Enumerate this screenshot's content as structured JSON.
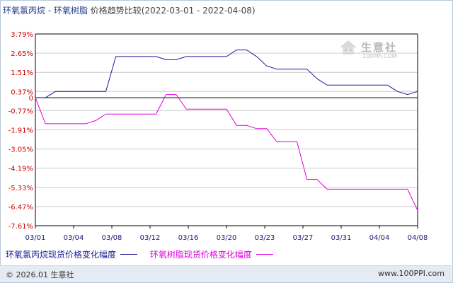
{
  "title": {
    "main": "环氧氯丙烷 - 环氧树脂",
    "sub": "价格趋势比较(2022-03-01 - 2022-04-08)"
  },
  "watermark": {
    "text": "生意社",
    "url": "100PPI.COM"
  },
  "footer": {
    "left": "© 2026.01 生意社",
    "right": "www.100PPI.com"
  },
  "colors": {
    "series_a": "#1a1a9a",
    "series_b": "#e000e0",
    "axis": "#000000",
    "grid": "#cccccc"
  },
  "chart_data": {
    "type": "line",
    "xlabel": "",
    "ylabel": "",
    "ylim": [
      -7.61,
      3.79
    ],
    "yticks": [
      "3.79%",
      "2.65%",
      "1.51%",
      "0.37%",
      "0",
      "-0.77%",
      "-1.91%",
      "-3.05%",
      "-4.19%",
      "-5.33%",
      "-6.47%",
      "-7.61%"
    ],
    "ytick_values": [
      3.79,
      2.65,
      1.51,
      0.37,
      0,
      -0.77,
      -1.91,
      -3.05,
      -4.19,
      -5.33,
      -6.47,
      -7.61
    ],
    "xticks": [
      "03/01",
      "03/04",
      "03/08",
      "03/12",
      "03/16",
      "03/20",
      "03/23",
      "03/27",
      "03/31",
      "04/04",
      "04/08"
    ],
    "x_day_range": [
      0,
      38
    ],
    "grid": "horizontal",
    "legend_position": "bottom",
    "series": [
      {
        "name": "环氧氯丙烷现货价格变化幅度",
        "color": "#1a1a9a",
        "points": [
          [
            0,
            0
          ],
          [
            1,
            0
          ],
          [
            2,
            0.37
          ],
          [
            3,
            0.37
          ],
          [
            4,
            0.37
          ],
          [
            5,
            0.37
          ],
          [
            6,
            0.37
          ],
          [
            7,
            0.37
          ],
          [
            8,
            2.45
          ],
          [
            9,
            2.45
          ],
          [
            10,
            2.45
          ],
          [
            11,
            2.45
          ],
          [
            12,
            2.45
          ],
          [
            13,
            2.26
          ],
          [
            14,
            2.26
          ],
          [
            15,
            2.45
          ],
          [
            16,
            2.45
          ],
          [
            17,
            2.45
          ],
          [
            18,
            2.45
          ],
          [
            19,
            2.45
          ],
          [
            20,
            2.84
          ],
          [
            21,
            2.84
          ],
          [
            22,
            2.45
          ],
          [
            23,
            1.89
          ],
          [
            24,
            1.7
          ],
          [
            25,
            1.7
          ],
          [
            26,
            1.7
          ],
          [
            27,
            1.7
          ],
          [
            28,
            1.13
          ],
          [
            29,
            0.75
          ],
          [
            30,
            0.75
          ],
          [
            31,
            0.75
          ],
          [
            32,
            0.75
          ],
          [
            33,
            0.75
          ],
          [
            34,
            0.75
          ],
          [
            35,
            0.75
          ],
          [
            36,
            0.37
          ],
          [
            37,
            0.19
          ],
          [
            38,
            0.37
          ]
        ]
      },
      {
        "name": "环氧树脂现货价格变化幅度",
        "color": "#e000e0",
        "points": [
          [
            0,
            0
          ],
          [
            1,
            -1.55
          ],
          [
            2,
            -1.55
          ],
          [
            3,
            -1.55
          ],
          [
            4,
            -1.55
          ],
          [
            5,
            -1.55
          ],
          [
            6,
            -1.36
          ],
          [
            7,
            -0.97
          ],
          [
            8,
            -0.97
          ],
          [
            9,
            -0.97
          ],
          [
            10,
            -0.97
          ],
          [
            11,
            -0.97
          ],
          [
            12,
            -0.97
          ],
          [
            13,
            0.19
          ],
          [
            14,
            0.19
          ],
          [
            15,
            -0.68
          ],
          [
            16,
            -0.68
          ],
          [
            17,
            -0.68
          ],
          [
            18,
            -0.68
          ],
          [
            19,
            -0.68
          ],
          [
            20,
            -1.65
          ],
          [
            21,
            -1.65
          ],
          [
            22,
            -1.84
          ],
          [
            23,
            -1.84
          ],
          [
            24,
            -2.62
          ],
          [
            25,
            -2.62
          ],
          [
            26,
            -2.62
          ],
          [
            27,
            -4.86
          ],
          [
            28,
            -4.86
          ],
          [
            29,
            -5.44
          ],
          [
            30,
            -5.44
          ],
          [
            31,
            -5.44
          ],
          [
            32,
            -5.44
          ],
          [
            33,
            -5.44
          ],
          [
            34,
            -5.44
          ],
          [
            35,
            -5.44
          ],
          [
            36,
            -5.44
          ],
          [
            37,
            -5.44
          ],
          [
            38,
            -6.7
          ]
        ]
      }
    ]
  }
}
